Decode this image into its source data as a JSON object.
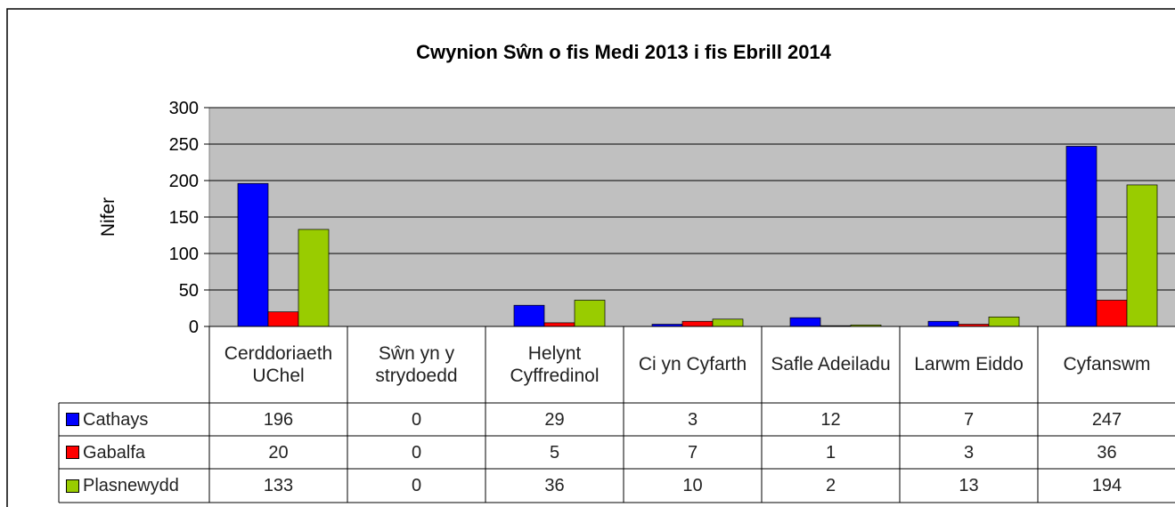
{
  "chart_data": {
    "type": "bar",
    "title": "Cwynion Sŵn o fis Medi 2013 i fis Ebrill 2014",
    "y_label": "Nifer",
    "categories": [
      "Cerddoriaeth UChel",
      "Sŵn yn y strydoedd",
      "Helynt Cyffredinol",
      "Ci yn Cyfarth",
      "Safle Adeiladu",
      "Larwm Eiddo",
      "Cyfanswm"
    ],
    "series": [
      {
        "name": "Cathays",
        "color": "#0000ff",
        "values": [
          196,
          0,
          29,
          3,
          12,
          7,
          247
        ]
      },
      {
        "name": "Gabalfa",
        "color": "#ff0000",
        "values": [
          20,
          0,
          5,
          7,
          1,
          3,
          36
        ]
      },
      {
        "name": "Plasnewydd",
        "color": "#99cc00",
        "values": [
          133,
          0,
          36,
          10,
          2,
          13,
          194
        ]
      }
    ],
    "ylim": [
      0,
      300
    ],
    "yticks": [
      0,
      50,
      100,
      150,
      200,
      250,
      300
    ],
    "grid": true,
    "legend": "table"
  }
}
